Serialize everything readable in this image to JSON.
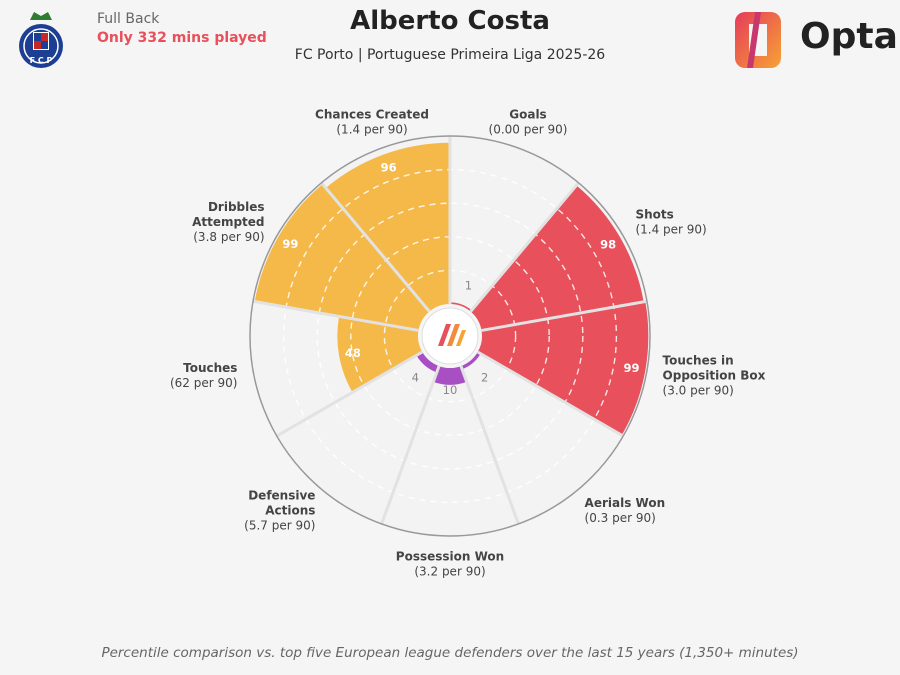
{
  "header": {
    "position": "Full Back",
    "minutes_note": "Only 332 mins played",
    "player_name": "Alberto Costa",
    "subtitle": "FC Porto | Portuguese Primeira Liga 2025-26",
    "brand": "Opta"
  },
  "crest": {
    "letters": "F C P"
  },
  "footnote": "Percentile comparison vs. top five European league defenders over the last 15 years (1,350+ minutes)",
  "colors": {
    "attacking": "#e8505b",
    "creation": "#f5b94a",
    "defensive": "#a84fc4",
    "empty": "#f3f3f3"
  },
  "chart_data": {
    "type": "polar-bar",
    "value_kind": "percentile",
    "rlim": [
      0,
      100
    ],
    "gridlines": [
      20,
      40,
      60,
      80
    ],
    "categories": [
      {
        "name": "Goals",
        "value_label": "(0.00 per 90)",
        "percentile": 1,
        "group": "attacking"
      },
      {
        "name": "Shots",
        "value_label": "(1.4 per 90)",
        "percentile": 98,
        "group": "attacking"
      },
      {
        "name": "Touches in\nOpposition Box",
        "value_label": "(3.0 per 90)",
        "percentile": 99,
        "group": "attacking"
      },
      {
        "name": "Aerials Won",
        "value_label": "(0.3 per 90)",
        "percentile": 2,
        "group": "defensive"
      },
      {
        "name": "Possession Won",
        "value_label": "(3.2 per 90)",
        "percentile": 10,
        "group": "defensive"
      },
      {
        "name": "Defensive\nActions",
        "value_label": "(5.7 per 90)",
        "percentile": 4,
        "group": "defensive"
      },
      {
        "name": "Touches",
        "value_label": "(62 per 90)",
        "percentile": 48,
        "group": "creation"
      },
      {
        "name": "Dribbles\nAttempted",
        "value_label": "(3.8 per 90)",
        "percentile": 99,
        "group": "creation"
      },
      {
        "name": "Chances Created",
        "value_label": "(1.4 per 90)",
        "percentile": 96,
        "group": "creation"
      }
    ]
  }
}
